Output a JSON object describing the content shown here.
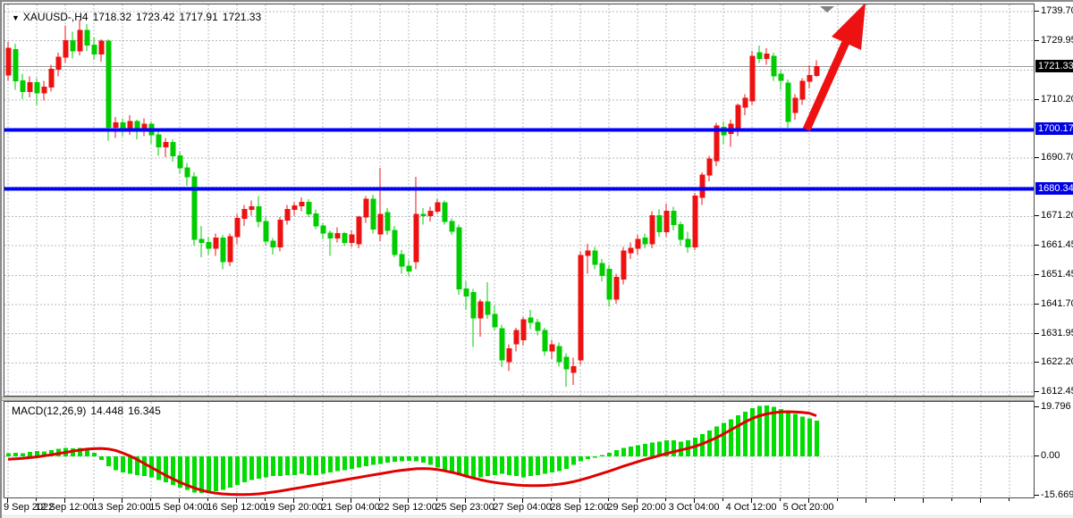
{
  "header": {
    "collapse_icon": "▼",
    "symbol": "XAUUSD-,H4",
    "open": "1718.32",
    "high": "1723.42",
    "low": "1717.91",
    "close": "1721.33"
  },
  "macd_header": {
    "label": "MACD(12,26,9)",
    "main_value": "14.448",
    "signal_value": "16.345"
  },
  "chart_data": {
    "type": "candlestick",
    "symbol": "XAUUSD",
    "timeframe": "H4",
    "price_axis": {
      "max": 1739.7,
      "min": 1612.45,
      "labels": [
        {
          "price": 1739.7,
          "text": "1739.70"
        },
        {
          "price": 1729.95,
          "text": "1729.95"
        },
        {
          "price": 1710.2,
          "text": "1710.20"
        },
        {
          "price": 1690.7,
          "text": "1690.70"
        },
        {
          "price": 1671.2,
          "text": "1671.20"
        },
        {
          "price": 1661.45,
          "text": "1661.45"
        },
        {
          "price": 1651.45,
          "text": "1651.45"
        },
        {
          "price": 1641.7,
          "text": "1641.70"
        },
        {
          "price": 1631.95,
          "text": "1631.95"
        },
        {
          "price": 1622.2,
          "text": "1622.20"
        },
        {
          "price": 1612.45,
          "text": "1612.45"
        }
      ],
      "gridline_prices": [
        1739.7,
        1729.95,
        1720.2,
        1710.2,
        1700.45,
        1690.7,
        1680.95,
        1671.2,
        1661.45,
        1651.45,
        1641.7,
        1631.95,
        1622.2,
        1612.45
      ]
    },
    "time_labels": [
      {
        "index": 0,
        "text": "9 Sep 2022"
      },
      {
        "index": 8,
        "text": "12 Sep 12:00"
      },
      {
        "index": 16,
        "text": "13 Sep 20:00"
      },
      {
        "index": 24,
        "text": "15 Sep 04:00"
      },
      {
        "index": 32,
        "text": "16 Sep 12:00"
      },
      {
        "index": 40,
        "text": "19 Sep 20:00"
      },
      {
        "index": 48,
        "text": "21 Sep 04:00"
      },
      {
        "index": 56,
        "text": "22 Sep 12:00"
      },
      {
        "index": 64,
        "text": "25 Sep 23:00"
      },
      {
        "index": 72,
        "text": "27 Sep 04:00"
      },
      {
        "index": 80,
        "text": "28 Sep 12:00"
      },
      {
        "index": 88,
        "text": "29 Sep 20:00"
      },
      {
        "index": 96,
        "text": "3 Oct 04:00"
      },
      {
        "index": 104,
        "text": "4 Oct 12:00"
      },
      {
        "index": 112,
        "text": "5 Oct 20:00"
      }
    ],
    "candles": [
      [
        1718.5,
        1729.5,
        1716.5,
        1727.5
      ],
      [
        1727.0,
        1729.0,
        1713.5,
        1716.5
      ],
      [
        1716.5,
        1719.0,
        1710.5,
        1713.0
      ],
      [
        1713.0,
        1718.0,
        1711.0,
        1716.0
      ],
      [
        1716.0,
        1717.5,
        1708.5,
        1712.5
      ],
      [
        1712.5,
        1716.5,
        1710.0,
        1714.5
      ],
      [
        1714.5,
        1722.0,
        1713.0,
        1720.5
      ],
      [
        1720.5,
        1726.0,
        1718.0,
        1724.5
      ],
      [
        1724.5,
        1735.0,
        1722.5,
        1730.0
      ],
      [
        1730.0,
        1733.0,
        1724.0,
        1726.5
      ],
      [
        1726.5,
        1737.0,
        1725.0,
        1733.5
      ],
      [
        1733.5,
        1735.5,
        1726.5,
        1728.5
      ],
      [
        1728.5,
        1731.0,
        1723.5,
        1725.5
      ],
      [
        1725.5,
        1730.5,
        1723.0,
        1729.8
      ],
      [
        1729.8,
        1730.5,
        1696.5,
        1701.0
      ],
      [
        1701.0,
        1704.5,
        1697.5,
        1702.5
      ],
      [
        1702.5,
        1704.0,
        1698.0,
        1700.5
      ],
      [
        1700.5,
        1705.0,
        1698.5,
        1703.0
      ],
      [
        1703.0,
        1703.5,
        1697.0,
        1700.0
      ],
      [
        1700.0,
        1704.0,
        1698.0,
        1702.0
      ],
      [
        1702.0,
        1703.0,
        1695.5,
        1698.5
      ],
      [
        1698.5,
        1700.0,
        1691.5,
        1694.5
      ],
      [
        1694.5,
        1697.5,
        1691.0,
        1696.0
      ],
      [
        1696.0,
        1697.0,
        1689.5,
        1691.5
      ],
      [
        1691.5,
        1693.0,
        1685.5,
        1687.5
      ],
      [
        1687.5,
        1689.0,
        1681.5,
        1684.5
      ],
      [
        1684.5,
        1686.0,
        1661.5,
        1663.5
      ],
      [
        1663.5,
        1668.0,
        1657.5,
        1662.5
      ],
      [
        1662.5,
        1664.5,
        1658.5,
        1660.5
      ],
      [
        1660.5,
        1665.5,
        1658.0,
        1664.0
      ],
      [
        1664.0,
        1665.0,
        1653.5,
        1656.0
      ],
      [
        1656.0,
        1665.5,
        1654.5,
        1664.5
      ],
      [
        1664.5,
        1672.0,
        1662.0,
        1670.5
      ],
      [
        1670.5,
        1675.0,
        1668.0,
        1673.5
      ],
      [
        1673.5,
        1676.5,
        1671.5,
        1674.5
      ],
      [
        1674.5,
        1678.0,
        1667.5,
        1669.5
      ],
      [
        1669.5,
        1671.0,
        1661.5,
        1663.0
      ],
      [
        1663.0,
        1664.0,
        1658.5,
        1661.0
      ],
      [
        1661.0,
        1671.0,
        1659.5,
        1670.0
      ],
      [
        1670.0,
        1675.0,
        1668.5,
        1673.5
      ],
      [
        1673.5,
        1676.0,
        1671.5,
        1674.8
      ],
      [
        1674.8,
        1677.5,
        1673.0,
        1676.0
      ],
      [
        1676.0,
        1677.0,
        1671.0,
        1672.0
      ],
      [
        1672.0,
        1673.5,
        1667.0,
        1668.0
      ],
      [
        1668.0,
        1669.0,
        1663.5,
        1665.6
      ],
      [
        1665.6,
        1666.5,
        1658.0,
        1664.0
      ],
      [
        1664.0,
        1667.5,
        1662.5,
        1665.5
      ],
      [
        1665.5,
        1666.0,
        1661.5,
        1662.5
      ],
      [
        1662.5,
        1666.5,
        1661.0,
        1665.0
      ],
      [
        1662.0,
        1671.5,
        1660.5,
        1671.0
      ],
      [
        1671.0,
        1678.0,
        1669.0,
        1677.0
      ],
      [
        1677.0,
        1678.5,
        1665.5,
        1667.0
      ],
      [
        1665.4,
        1687.4,
        1663.0,
        1671.9
      ],
      [
        1672.5,
        1674.0,
        1665.0,
        1666.5
      ],
      [
        1666.5,
        1668.0,
        1657.5,
        1658.4
      ],
      [
        1658.4,
        1660.0,
        1652.0,
        1654.5
      ],
      [
        1654.5,
        1656.5,
        1651.5,
        1653.0
      ],
      [
        1656.0,
        1684.4,
        1653.5,
        1671.9
      ],
      [
        1671.9,
        1674.0,
        1668.5,
        1671.5
      ],
      [
        1671.5,
        1674.5,
        1669.5,
        1673.0
      ],
      [
        1673.0,
        1677.0,
        1672.0,
        1675.8
      ],
      [
        1675.8,
        1676.5,
        1668.5,
        1669.5
      ],
      [
        1669.5,
        1670.5,
        1665.0,
        1666.2
      ],
      [
        1667.4,
        1668.5,
        1645.0,
        1647.0
      ],
      [
        1647.0,
        1649.5,
        1640.0,
        1644.6
      ],
      [
        1645.8,
        1647.0,
        1627.5,
        1637.2
      ],
      [
        1637.2,
        1643.5,
        1631.0,
        1642.6
      ],
      [
        1642.6,
        1649.2,
        1637.0,
        1638.5
      ],
      [
        1638.5,
        1641.5,
        1633.0,
        1634.3
      ],
      [
        1633.7,
        1635.0,
        1620.8,
        1623.2
      ],
      [
        1622.6,
        1628.5,
        1619.5,
        1627.0
      ],
      [
        1628.6,
        1634.0,
        1626.0,
        1633.0
      ],
      [
        1630.0,
        1637.5,
        1628.0,
        1636.6
      ],
      [
        1637.2,
        1640.0,
        1633.5,
        1635.7
      ],
      [
        1635.7,
        1637.0,
        1631.5,
        1633.0
      ],
      [
        1633.0,
        1634.0,
        1624.5,
        1626.2
      ],
      [
        1626.2,
        1630.0,
        1623.5,
        1628.3
      ],
      [
        1627.7,
        1629.0,
        1621.0,
        1622.6
      ],
      [
        1624.1,
        1625.5,
        1614.3,
        1620.2
      ],
      [
        1619.0,
        1624.0,
        1614.9,
        1621.0
      ],
      [
        1623.2,
        1659.5,
        1621.5,
        1658.1
      ],
      [
        1658.1,
        1662.0,
        1652.0,
        1659.6
      ],
      [
        1659.6,
        1661.0,
        1653.5,
        1655.1
      ],
      [
        1655.4,
        1657.0,
        1649.5,
        1651.5
      ],
      [
        1653.6,
        1655.0,
        1641.0,
        1643.5
      ],
      [
        1643.5,
        1652.0,
        1642.0,
        1650.9
      ],
      [
        1650.3,
        1661.0,
        1648.5,
        1659.6
      ],
      [
        1659.0,
        1662.5,
        1657.0,
        1660.5
      ],
      [
        1660.5,
        1665.0,
        1658.5,
        1663.5
      ],
      [
        1664.0,
        1665.5,
        1660.5,
        1662.0
      ],
      [
        1662.0,
        1673.0,
        1660.5,
        1671.5
      ],
      [
        1671.5,
        1673.5,
        1664.5,
        1666.0
      ],
      [
        1666.0,
        1675.5,
        1664.5,
        1673.0
      ],
      [
        1673.0,
        1674.5,
        1666.5,
        1668.5
      ],
      [
        1668.5,
        1669.5,
        1661.5,
        1663.5
      ],
      [
        1663.5,
        1666.0,
        1659.0,
        1661.0
      ],
      [
        1661.0,
        1679.0,
        1660.0,
        1678.0
      ],
      [
        1677.5,
        1686.0,
        1675.0,
        1685.0
      ],
      [
        1685.0,
        1691.5,
        1683.0,
        1690.4
      ],
      [
        1689.8,
        1702.5,
        1688.0,
        1701.5
      ],
      [
        1701.0,
        1703.0,
        1695.5,
        1698.5
      ],
      [
        1699.0,
        1703.5,
        1694.5,
        1702.0
      ],
      [
        1700.9,
        1709.0,
        1698.0,
        1708.3
      ],
      [
        1707.7,
        1712.0,
        1705.0,
        1710.7
      ],
      [
        1709.8,
        1726.5,
        1708.5,
        1724.8
      ],
      [
        1726.0,
        1728.4,
        1722.5,
        1724.0
      ],
      [
        1724.0,
        1727.5,
        1722.0,
        1725.5
      ],
      [
        1724.8,
        1726.0,
        1716.5,
        1718.2
      ],
      [
        1718.8,
        1720.0,
        1713.5,
        1716.7
      ],
      [
        1715.8,
        1717.0,
        1700.9,
        1703.0
      ],
      [
        1705.9,
        1712.0,
        1703.5,
        1710.7
      ],
      [
        1710.4,
        1717.5,
        1708.5,
        1716.4
      ],
      [
        1716.4,
        1721.8,
        1714.0,
        1718.3
      ],
      [
        1718.32,
        1723.42,
        1717.91,
        1721.33
      ]
    ],
    "hlines": [
      {
        "price": 1700.17,
        "label": "1700.17"
      },
      {
        "price": 1680.34,
        "label": "1680.34"
      }
    ],
    "bid": {
      "price": 1721.33,
      "label": "1721.33"
    },
    "macd": {
      "axis_labels": [
        {
          "value": 19.796,
          "text": "19.796"
        },
        {
          "value": 0,
          "text": "0.00"
        },
        {
          "value": -15.669,
          "text": "-15.669"
        }
      ],
      "histogram": [
        1.2,
        1.5,
        1.3,
        1.8,
        2.2,
        2.0,
        2.5,
        3.0,
        3.4,
        3.2,
        3.5,
        2.8,
        1.5,
        -1.5,
        -4.0,
        -5.5,
        -6.5,
        -7.0,
        -7.5,
        -8.0,
        -8.5,
        -9.5,
        -10.5,
        -11.5,
        -12.5,
        -13.5,
        -14.5,
        -14.8,
        -14.5,
        -14.0,
        -13.5,
        -12.5,
        -11.5,
        -10.5,
        -9.5,
        -9.0,
        -8.5,
        -8.0,
        -8.0,
        -7.5,
        -7.5,
        -7.0,
        -7.5,
        -7.5,
        -7.0,
        -6.5,
        -6.0,
        -5.5,
        -5.0,
        -4.5,
        -4.0,
        -3.5,
        -3.0,
        -2.5,
        -2.2,
        -2.0,
        -1.8,
        -2.0,
        -2.5,
        -3.5,
        -4.5,
        -5.5,
        -6.5,
        -7.5,
        -8.0,
        -8.5,
        -8.5,
        -8.0,
        -7.5,
        -7.0,
        -7.5,
        -8.0,
        -8.5,
        -8.0,
        -7.5,
        -7.0,
        -6.5,
        -6.0,
        -5.0,
        -3.5,
        -2.0,
        -1.0,
        -0.5,
        0.5,
        1.5,
        2.5,
        3.5,
        4.0,
        4.5,
        5.0,
        5.5,
        6.0,
        6.5,
        6.5,
        6.0,
        6.5,
        7.5,
        9.0,
        10.5,
        12.0,
        13.5,
        15.0,
        16.5,
        18.0,
        19.5,
        20.3,
        20.5,
        20.0,
        19.0,
        18.0,
        17.0,
        16.0,
        15.2,
        14.45
      ],
      "signal": [
        -1.2,
        -1.0,
        -0.8,
        -0.5,
        -0.2,
        0.2,
        0.6,
        1.1,
        1.6,
        2.1,
        2.5,
        2.9,
        3.1,
        3.2,
        3.0,
        2.4,
        1.4,
        0.2,
        -1.2,
        -2.8,
        -4.4,
        -6.0,
        -7.6,
        -9.0,
        -10.4,
        -11.6,
        -12.7,
        -13.6,
        -14.3,
        -14.8,
        -15.1,
        -15.3,
        -15.4,
        -15.4,
        -15.3,
        -15.1,
        -14.8,
        -14.4,
        -14.0,
        -13.5,
        -13.0,
        -12.5,
        -12.0,
        -11.5,
        -11.0,
        -10.5,
        -10.0,
        -9.5,
        -9.0,
        -8.5,
        -8.0,
        -7.5,
        -7.0,
        -6.5,
        -6.0,
        -5.6,
        -5.3,
        -5.0,
        -4.9,
        -5.0,
        -5.3,
        -5.8,
        -6.4,
        -7.1,
        -7.9,
        -8.7,
        -9.4,
        -10.0,
        -10.5,
        -10.9,
        -11.2,
        -11.5,
        -11.7,
        -11.8,
        -11.8,
        -11.7,
        -11.5,
        -11.2,
        -10.8,
        -10.2,
        -9.5,
        -8.7,
        -7.8,
        -6.9,
        -6.0,
        -5.0,
        -4.0,
        -3.1,
        -2.2,
        -1.3,
        -0.5,
        0.3,
        1.1,
        1.8,
        2.5,
        3.2,
        4.0,
        5.0,
        6.2,
        7.5,
        9.0,
        10.6,
        12.2,
        13.8,
        15.2,
        16.3,
        17.1,
        17.6,
        17.9,
        18.0,
        17.9,
        17.7,
        17.4,
        16.35
      ]
    },
    "annotations": {
      "arrow": {
        "shape": "up-right-arrow",
        "color": "#ee1111"
      },
      "shift_marker": {
        "shape": "down-triangle",
        "color": "#808080"
      }
    },
    "colors": {
      "up_candle": "#ee1111",
      "down_candle": "#00cc00",
      "grid": "#b3b8c2",
      "histogram": "#00dd00",
      "signal_line": "#e00000",
      "bid_line": "#999999",
      "hline": "#0000ff",
      "bid_label_bg": "#000000",
      "hline_label_bg": "#0000e0"
    }
  }
}
